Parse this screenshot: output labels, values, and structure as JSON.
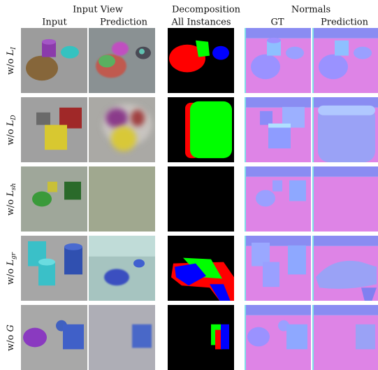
{
  "header": {
    "groups": [
      {
        "title": "Input View",
        "columns": [
          "Input",
          "Prediction"
        ]
      },
      {
        "title": "Decomposition",
        "columns": [
          "All Instances"
        ]
      },
      {
        "title": "Normals",
        "columns": [
          "GT",
          "Prediction"
        ]
      }
    ]
  },
  "rows": [
    {
      "prefix": "w/o",
      "symbol": "L",
      "subscript": "I"
    },
    {
      "prefix": "w/o",
      "symbol": "L",
      "subscript": "D"
    },
    {
      "prefix": "w/o",
      "symbol": "L",
      "subscript": "sh"
    },
    {
      "prefix": "w/o",
      "symbol": "L",
      "subscript": "gr"
    },
    {
      "prefix": "w/o",
      "symbol": "G"
    }
  ]
}
